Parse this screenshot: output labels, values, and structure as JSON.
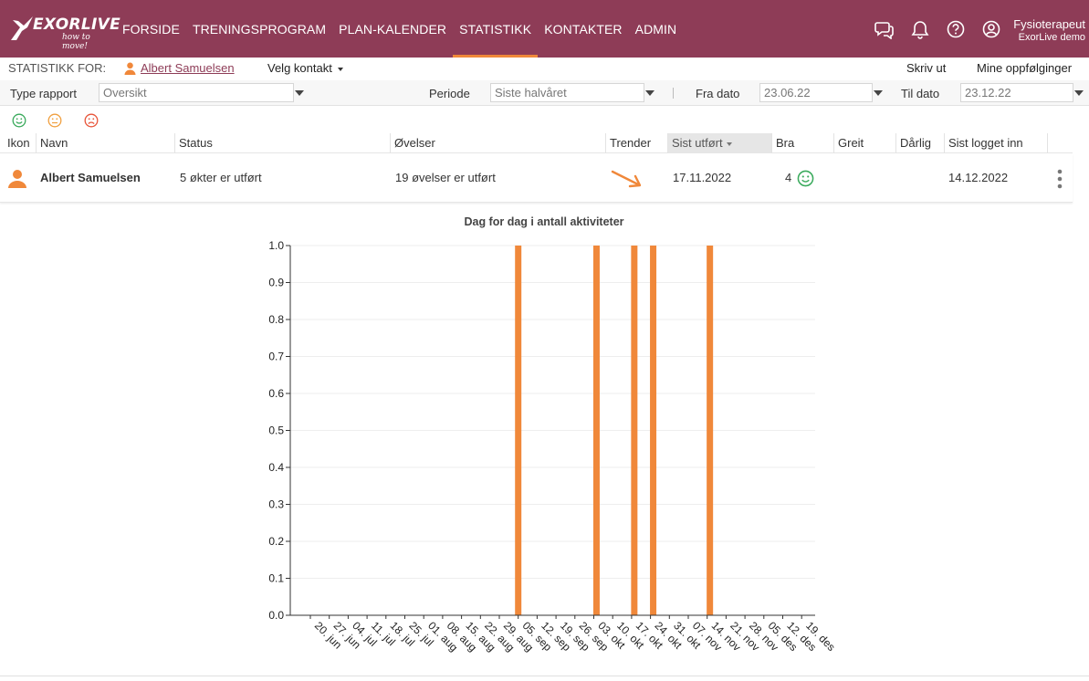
{
  "app": {
    "logo_text": "EXORLIVE",
    "logo_tagline": "how to move!"
  },
  "nav": {
    "items": [
      "FORSIDE",
      "TRENINGSPROGRAM",
      "PLAN-KALENDER",
      "STATISTIKK",
      "KONTAKTER",
      "ADMIN"
    ],
    "active": "STATISTIKK"
  },
  "user": {
    "role": "Fysioterapeut",
    "org": "ExorLive demo"
  },
  "icons": {
    "chat": "chat-icon",
    "bell": "bell-icon",
    "help": "help-icon",
    "account": "account-icon"
  },
  "contact_bar": {
    "label": "STATISTIKK FOR:",
    "contact_name": "Albert Samuelsen",
    "select_contact": "Velg kontakt",
    "print": "Skriv ut",
    "followups": "Mine oppfølginger"
  },
  "filters": {
    "report_type_label": "Type rapport",
    "report_type_value": "Oversikt",
    "period_label": "Periode",
    "period_value": "Siste halvåret",
    "from_label": "Fra dato",
    "from_value": "23.06.22",
    "to_label": "Til dato",
    "to_value": "23.12.22"
  },
  "table": {
    "columns": [
      "Ikon",
      "Navn",
      "Status",
      "Øvelser",
      "Trender",
      "Sist utført",
      "Bra",
      "Greit",
      "Dårlig",
      "Sist logget inn"
    ],
    "sorted_column": "Sist utført",
    "rows": [
      {
        "name": "Albert Samuelsen",
        "status": "5 økter er utført",
        "exercises": "19 øvelser er utført",
        "trend": "down",
        "last_done": "17.11.2022",
        "good": "4",
        "ok": "",
        "bad": "",
        "last_login": "14.12.2022"
      }
    ]
  },
  "colors": {
    "brand": "#8e3c57",
    "accent": "#f0883a",
    "good": "#3aaa5c",
    "ok": "#f0a040",
    "bad": "#e8553a"
  },
  "chart_data": {
    "type": "bar",
    "title": "Dag for dag i antall aktiviteter",
    "xlabel": "",
    "ylabel": "",
    "ylim": [
      0,
      1.0
    ],
    "yticks": [
      "0.0",
      "0.1",
      "0.2",
      "0.3",
      "0.4",
      "0.5",
      "0.6",
      "0.7",
      "0.8",
      "0.9",
      "1.0"
    ],
    "categories": [
      "20. jun",
      "27. jun",
      "04. jul",
      "11. jul",
      "18. jul",
      "25. jul",
      "01. aug",
      "08. aug",
      "15. aug",
      "22. aug",
      "29. aug",
      "05. sep",
      "12. sep",
      "19. sep",
      "26. sep",
      "03. okt",
      "10. okt",
      "17. okt",
      "24. okt",
      "31. okt",
      "07. nov",
      "14. nov",
      "21. nov",
      "28. nov",
      "05. des",
      "12. des",
      "19. des"
    ],
    "series": [
      {
        "name": "Aktiviteter",
        "points": [
          {
            "date": "2022-09-05",
            "value": 1
          },
          {
            "date": "2022-10-04",
            "value": 1
          },
          {
            "date": "2022-10-18",
            "value": 1
          },
          {
            "date": "2022-10-25",
            "value": 1
          },
          {
            "date": "2022-11-15",
            "value": 1
          }
        ]
      }
    ],
    "grid": true,
    "legend": "none"
  }
}
